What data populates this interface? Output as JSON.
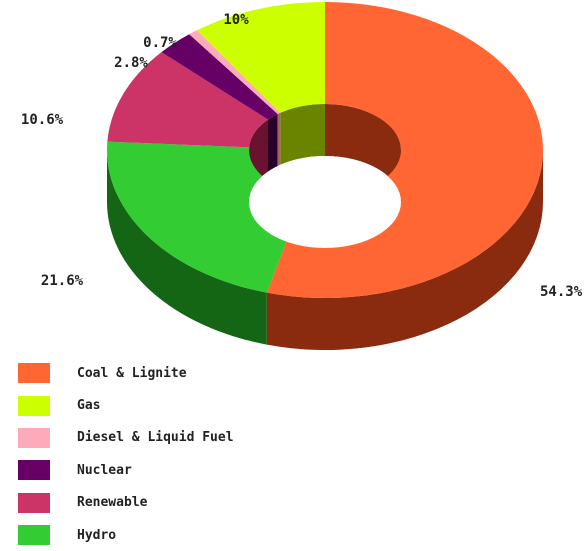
{
  "chart_data": {
    "type": "pie",
    "title": "",
    "legend_position": "bottom-left",
    "slices": [
      {
        "label": "Coal & Lignite",
        "value": 54.3,
        "display": "54.3%",
        "color": "#ff6633",
        "dark": "#8a2a0e"
      },
      {
        "label": "Hydro",
        "value": 21.6,
        "display": "21.6%",
        "color": "#33cc33",
        "dark": "#146614"
      },
      {
        "label": "Renewable",
        "value": 10.6,
        "display": "10.6%",
        "color": "#cc3366",
        "dark": "#6a1230"
      },
      {
        "label": "Nuclear",
        "value": 2.8,
        "display": "2.8%",
        "color": "#660066",
        "dark": "#2a002a"
      },
      {
        "label": "Diesel & Liquid Fuel",
        "value": 0.7,
        "display": "0.7%",
        "color": "#ffaabb",
        "dark": "#a8606c"
      },
      {
        "label": "Gas",
        "value": 10,
        "display": "10%",
        "color": "#ccff00",
        "dark": "#6a8400"
      }
    ],
    "legend": [
      {
        "label": "Coal & Lignite",
        "color": "#ff6633"
      },
      {
        "label": "Gas",
        "color": "#ccff00"
      },
      {
        "label": "Diesel & Liquid Fuel",
        "color": "#ffaabb"
      },
      {
        "label": "Nuclear",
        "color": "#660066"
      },
      {
        "label": "Renewable",
        "color": "#cc3366"
      },
      {
        "label": "Hydro",
        "color": "#33cc33"
      }
    ]
  }
}
